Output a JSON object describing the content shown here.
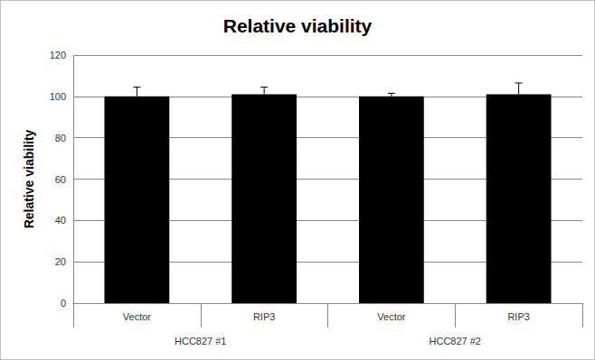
{
  "chart_data": {
    "type": "bar",
    "title": "Relative viability",
    "y_label": "Relative viability",
    "categories": [
      "Vector",
      "RIP3",
      "Vector",
      "RIP3"
    ],
    "groups": [
      {
        "label": "HCC827 #1",
        "size": 2
      },
      {
        "label": "HCC827 #2",
        "size": 2
      }
    ],
    "values": [
      100,
      101,
      100,
      101
    ],
    "errors": [
      4.5,
      3.5,
      1.5,
      5.5
    ],
    "color": "#000000",
    "ylim": [
      0,
      120
    ],
    "yticks": [
      0,
      20,
      40,
      60,
      80,
      100,
      120
    ],
    "grid": true
  }
}
